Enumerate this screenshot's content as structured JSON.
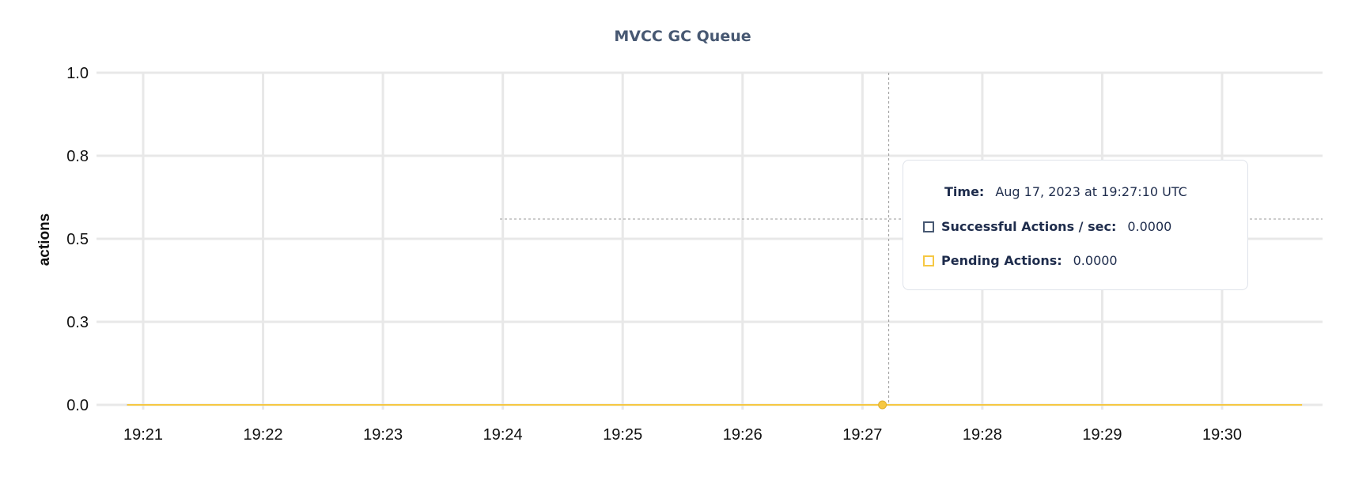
{
  "chart_data": {
    "type": "line",
    "title": "MVCC GC Queue",
    "xlabel": "",
    "ylabel": "actions",
    "ylim": [
      0,
      1
    ],
    "y_ticks": [
      0,
      0.25,
      0.5,
      0.75,
      1
    ],
    "y_tick_labels": [
      "0.0",
      "0.3",
      "0.5",
      "0.8",
      "1.0"
    ],
    "x_tick_labels": [
      "19:21",
      "19:22",
      "19:23",
      "19:24",
      "19:25",
      "19:26",
      "19:27",
      "19:28",
      "19:29",
      "19:30"
    ],
    "x_range": [
      "19:20:52",
      "19:30:40"
    ],
    "grid": true,
    "series": [
      {
        "name": "Successful Actions / sec",
        "color": "#475872",
        "x": [
          "19:20:52",
          "19:30:40"
        ],
        "values": [
          0,
          0
        ]
      },
      {
        "name": "Pending Actions",
        "color": "#f6c843",
        "x": [
          "19:20:52",
          "19:30:40"
        ],
        "values": [
          0,
          0
        ]
      }
    ],
    "hover": {
      "time": "19:27:10",
      "value": 0
    }
  },
  "tooltip": {
    "time_label": "Time:",
    "time_value": "Aug 17, 2023 at 19:27:10 UTC",
    "rows": [
      {
        "label": "Successful Actions / sec:",
        "value": "0.0000",
        "color": "#475872"
      },
      {
        "label": "Pending Actions:",
        "value": "0.0000",
        "color": "#f6c843"
      }
    ]
  }
}
